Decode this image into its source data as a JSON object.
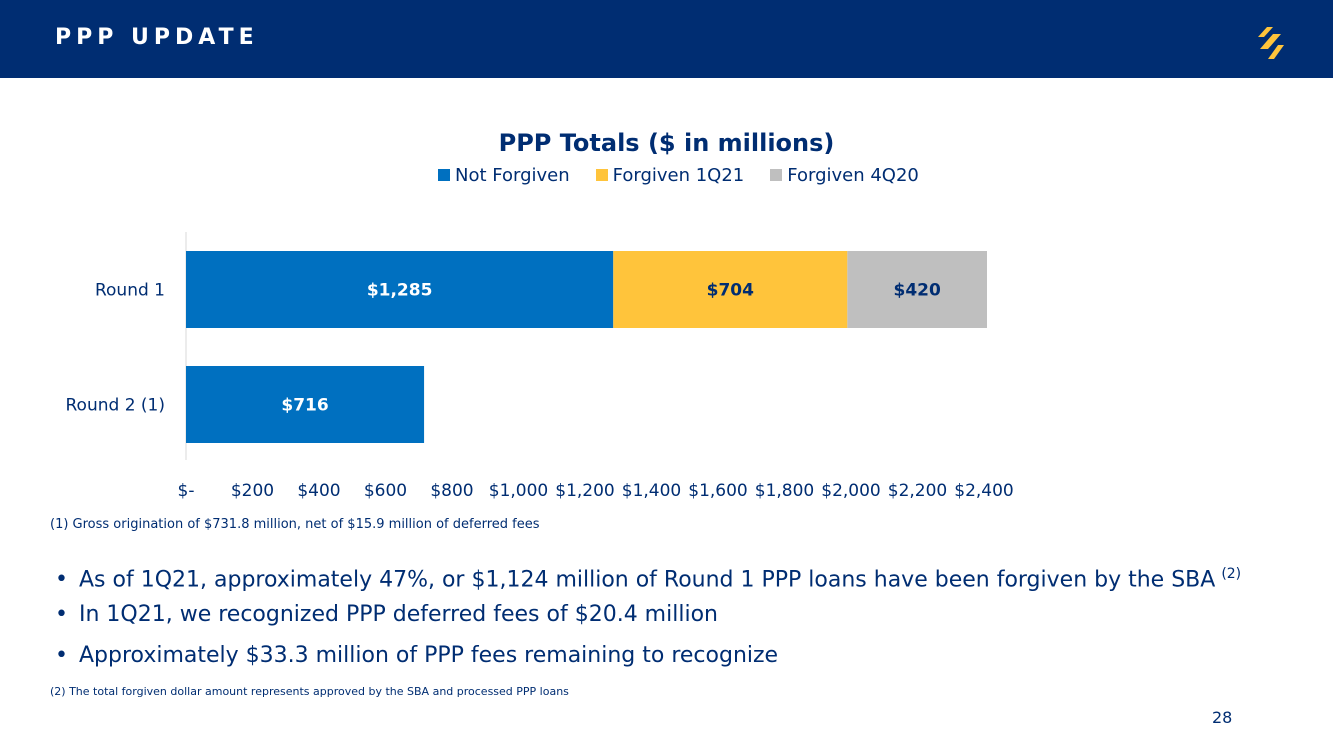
{
  "header": {
    "title": "PPP UPDATE"
  },
  "colors": {
    "header_bg": "#002d72",
    "logo": "#ffc43b"
  },
  "chart_data": {
    "type": "bar",
    "orientation": "horizontal",
    "stacked": true,
    "title": "PPP Totals ($ in millions)",
    "categories": [
      "Round 1",
      "Round 2 (1)"
    ],
    "series": [
      {
        "name": "Not Forgiven",
        "color": "#0070c0",
        "values": [
          1285,
          716
        ],
        "labels": [
          "$1,285",
          "$716"
        ]
      },
      {
        "name": "Forgiven 1Q21",
        "color": "#ffc43b",
        "values": [
          704,
          null
        ],
        "labels": [
          "$704",
          ""
        ]
      },
      {
        "name": "Forgiven 4Q20",
        "color": "#bfbfbf",
        "values": [
          420,
          null
        ],
        "labels": [
          "$420",
          ""
        ]
      }
    ],
    "xlim": [
      0,
      2400
    ],
    "xticks": [
      0,
      200,
      400,
      600,
      800,
      1000,
      1200,
      1400,
      1600,
      1800,
      2000,
      2200,
      2400
    ],
    "xtick_labels": [
      "$-",
      "$200",
      "$400",
      "$600",
      "$800",
      "$1,000",
      "$1,200",
      "$1,400",
      "$1,600",
      "$1,800",
      "$2,000",
      "$2,200",
      "$2,400"
    ],
    "legend_position": "top",
    "grid": false
  },
  "footnote1": "(1)  Gross origination of $731.8 million, net of $15.9 million of deferred fees",
  "bullets": [
    {
      "dot": "•",
      "text": "As of 1Q21, approximately 47%, or $1,124 million of Round 1 PPP loans have been forgiven by the SBA",
      "sup": "(2)"
    },
    {
      "dot": "•",
      "text": "In 1Q21, we recognized PPP deferred fees of $20.4 million",
      "sup": ""
    },
    {
      "dot": "•",
      "text": "Approximately $33.3 million of PPP fees remaining to recognize",
      "sup": ""
    }
  ],
  "footnote2": "(2)  The total forgiven dollar amount represents approved by the SBA and processed PPP loans",
  "page_number": "28"
}
